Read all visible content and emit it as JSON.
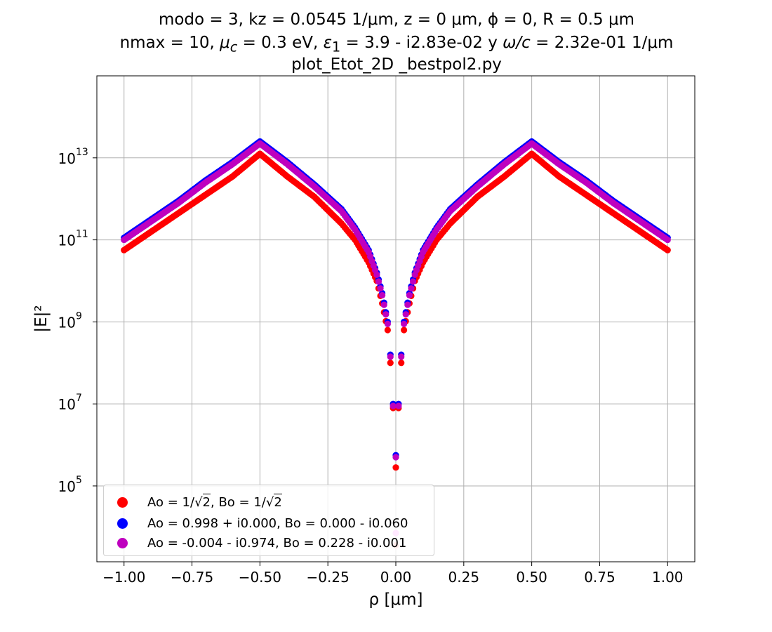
{
  "title": {
    "line1": "modo = 3, kz = 0.0545 1/μm, z = 0 μm, ϕ = 0, R = 0.5 μm",
    "line2_parts": {
      "nmax": "nmax = 10, ",
      "mu_sym": "μ",
      "mu_sub": "c",
      "mu_val": " = 0.3 eV, ",
      "eps_sym": "ε",
      "eps_sub": "1",
      "eps_val": " = 3.9 - i2.83e-02 y ",
      "omega": "ω/c",
      "omega_val": " = 2.32e-01 1/μm"
    },
    "line3": "plot_Etot_2D _bestpol2.py"
  },
  "chart_data": {
    "type": "scatter",
    "title": "modo = 3, kz = 0.0545 1/μm, z = 0 μm, ϕ = 0, R = 0.5 μm | nmax = 10, μc = 0.3 eV, ε1 = 3.9 - i2.83e-02 y ω/c = 2.32e-01 1/μm | plot_Etot_2D _bestpol2.py",
    "xlabel": "ρ [μm]",
    "ylabel": "|E|²",
    "xlim": [
      -1.1,
      1.1
    ],
    "ylim_log10": [
      3.15,
      15.0
    ],
    "yscale": "log",
    "grid": true,
    "legend_position": "lower-left",
    "x_ticks": [
      -1.0,
      -0.75,
      -0.5,
      -0.25,
      0.0,
      0.25,
      0.5,
      0.75,
      1.0
    ],
    "x_tick_labels": [
      "−1.00",
      "−0.75",
      "−0.50",
      "−0.25",
      "0.00",
      "0.25",
      "0.50",
      "0.75",
      "1.00"
    ],
    "y_ticks_log10": [
      5,
      7,
      9,
      11,
      13
    ],
    "y_tick_labels": [
      "10",
      "10",
      "10",
      "10",
      "10"
    ],
    "y_tick_exponents": [
      "5",
      "7",
      "9",
      "11",
      "13"
    ],
    "series": [
      {
        "name": "Ao = 1/√2, Bo = 1/√2",
        "name_text": "Ao = 1/√2, Bo = 1/√2",
        "color": "#ff0000",
        "x": [
          -1.0,
          -0.9,
          -0.8,
          -0.7,
          -0.6,
          -0.5,
          -0.4,
          -0.3,
          -0.2,
          -0.15,
          -0.1,
          -0.07,
          -0.05,
          -0.03,
          -0.02,
          -0.01,
          0.0,
          0.01,
          0.02,
          0.03,
          0.05,
          0.07,
          0.1,
          0.15,
          0.2,
          0.3,
          0.4,
          0.5,
          0.6,
          0.7,
          0.8,
          0.9,
          1.0
        ],
        "log10_y": [
          10.75,
          11.2,
          11.65,
          12.1,
          12.55,
          13.1,
          12.55,
          12.05,
          11.4,
          11.0,
          10.45,
          10.0,
          9.45,
          8.8,
          8.0,
          6.9,
          5.45,
          6.9,
          8.0,
          8.8,
          9.45,
          10.0,
          10.45,
          11.0,
          11.4,
          12.05,
          12.55,
          13.1,
          12.55,
          12.1,
          11.65,
          11.2,
          10.75
        ]
      },
      {
        "name": "Ao = 0.998 + i0.000, Bo = 0.000 - i0.060",
        "color": "#0000ff",
        "x": [
          -1.0,
          -0.9,
          -0.8,
          -0.7,
          -0.6,
          -0.5,
          -0.4,
          -0.3,
          -0.2,
          -0.15,
          -0.1,
          -0.07,
          -0.05,
          -0.03,
          -0.02,
          -0.01,
          0.0,
          0.01,
          0.02,
          0.03,
          0.05,
          0.07,
          0.1,
          0.15,
          0.2,
          0.3,
          0.4,
          0.5,
          0.6,
          0.7,
          0.8,
          0.9,
          1.0
        ],
        "log10_y": [
          11.05,
          11.5,
          11.95,
          12.45,
          12.9,
          13.4,
          12.9,
          12.35,
          11.75,
          11.3,
          10.75,
          10.2,
          9.7,
          9.0,
          8.2,
          7.0,
          5.75,
          7.0,
          8.2,
          9.0,
          9.7,
          10.2,
          10.75,
          11.3,
          11.75,
          12.35,
          12.9,
          13.4,
          12.9,
          12.45,
          11.95,
          11.5,
          11.05
        ]
      },
      {
        "name": "Ao = -0.004 - i0.974, Bo = 0.228 - i0.001",
        "color": "#bf00bf",
        "x": [
          -1.0,
          -0.9,
          -0.8,
          -0.7,
          -0.6,
          -0.5,
          -0.4,
          -0.3,
          -0.2,
          -0.15,
          -0.1,
          -0.07,
          -0.05,
          -0.03,
          -0.02,
          -0.01,
          0.0,
          0.01,
          0.02,
          0.03,
          0.05,
          0.07,
          0.1,
          0.15,
          0.2,
          0.3,
          0.4,
          0.5,
          0.6,
          0.7,
          0.8,
          0.9,
          1.0
        ],
        "log10_y": [
          11.0,
          11.45,
          11.9,
          12.4,
          12.85,
          13.35,
          12.85,
          12.3,
          11.7,
          11.25,
          10.7,
          10.15,
          9.65,
          8.95,
          8.15,
          6.95,
          5.7,
          6.95,
          8.15,
          8.95,
          9.65,
          10.15,
          10.7,
          11.25,
          11.7,
          12.3,
          12.85,
          13.35,
          12.85,
          12.4,
          11.9,
          11.45,
          11.0
        ]
      }
    ],
    "outliers_near_zero": [
      {
        "x": 0.0,
        "log10_y": 3.85,
        "color": "#ff88ff"
      },
      {
        "x": 0.0,
        "log10_y": 3.55,
        "color": "#ff9999"
      }
    ]
  },
  "legend": {
    "items": [
      {
        "color": "#ff0000",
        "parts": {
          "pre": "Ao = 1/",
          "rad1": "2",
          "mid": ", Bo = 1/",
          "rad2": "2"
        }
      },
      {
        "color": "#0000ff",
        "label": "Ao = 0.998 + i0.000, Bo = 0.000 - i0.060"
      },
      {
        "color": "#bf00bf",
        "label": "Ao = -0.004 - i0.974, Bo = 0.228 - i0.001"
      }
    ]
  }
}
